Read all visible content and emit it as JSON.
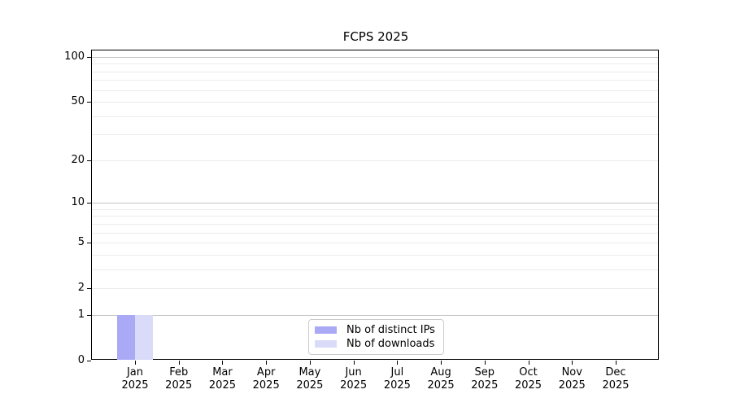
{
  "chart_data": {
    "type": "bar",
    "title": "FCPS 2025",
    "x_year": "2025",
    "categories": [
      "Jan",
      "Feb",
      "Mar",
      "Apr",
      "May",
      "Jun",
      "Jul",
      "Aug",
      "Sep",
      "Oct",
      "Nov",
      "Dec"
    ],
    "series": [
      {
        "name": "Nb of distinct IPs",
        "color": "#a9a9f5",
        "values": [
          1,
          0,
          0,
          0,
          0,
          0,
          0,
          0,
          0,
          0,
          0,
          0
        ]
      },
      {
        "name": "Nb of downloads",
        "color": "#dadaf9",
        "values": [
          1,
          0,
          0,
          0,
          0,
          0,
          0,
          0,
          0,
          0,
          0,
          0
        ]
      }
    ],
    "yticks": [
      0,
      1,
      2,
      5,
      10,
      20,
      50,
      100
    ],
    "ylim": [
      0,
      110
    ],
    "yscale": "log1p",
    "grid": {
      "horizontal": true,
      "major_values": [
        1,
        10,
        100
      ],
      "minor_values": [
        2,
        3,
        4,
        5,
        6,
        7,
        8,
        9,
        20,
        30,
        40,
        50,
        60,
        70,
        80,
        90
      ]
    },
    "legend": {
      "position": "lower center"
    },
    "colors": {
      "major_grid": "#c3c3c3",
      "minor_grid": "#ebebeb",
      "spine": "#000000",
      "background": "#ffffff"
    }
  }
}
